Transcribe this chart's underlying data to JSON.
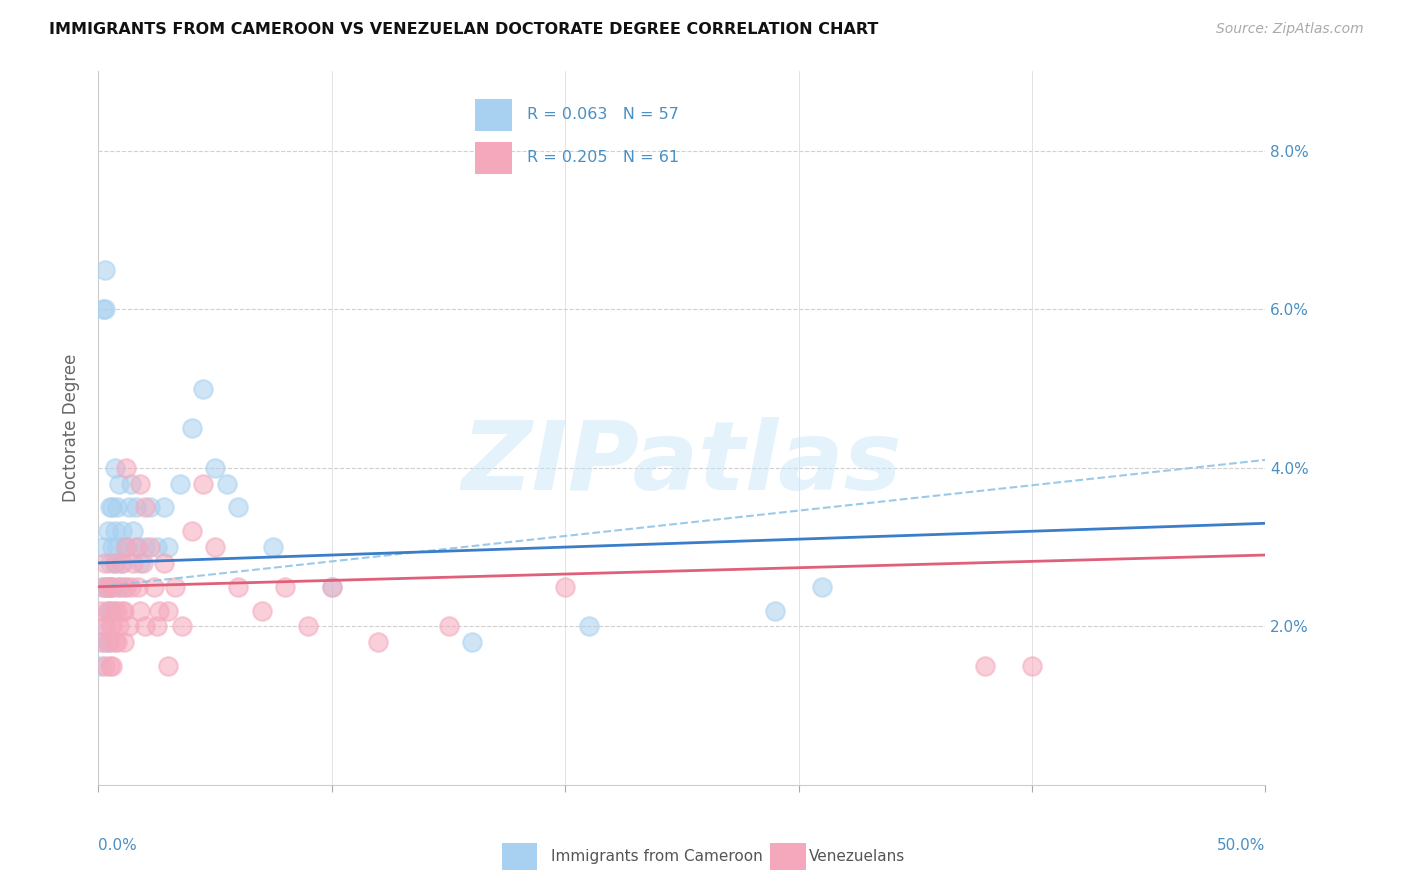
{
  "title": "IMMIGRANTS FROM CAMEROON VS VENEZUELAN DOCTORATE DEGREE CORRELATION CHART",
  "source": "Source: ZipAtlas.com",
  "ylabel": "Doctorate Degree",
  "color_cameroon": "#A8D0F0",
  "color_venezuela": "#F5A8BC",
  "color_text_blue": "#4A90C4",
  "color_trend_cam": "#3A7DC9",
  "color_trend_ven": "#E0607A",
  "color_dashed_cam": "#90C4E8",
  "legend_label1": "Immigrants from Cameroon",
  "legend_label2": "Venezuelans",
  "legend_R1": "R = 0.063",
  "legend_N1": "N = 57",
  "legend_R2": "R = 0.205",
  "legend_N2": "N = 61",
  "watermark": "ZIPatlas",
  "xlim": [
    0.0,
    0.5
  ],
  "ylim": [
    0.0,
    0.09
  ],
  "cam_x": [
    0.001,
    0.001,
    0.002,
    0.002,
    0.002,
    0.003,
    0.003,
    0.003,
    0.003,
    0.004,
    0.004,
    0.004,
    0.004,
    0.005,
    0.005,
    0.005,
    0.005,
    0.005,
    0.006,
    0.006,
    0.006,
    0.006,
    0.007,
    0.007,
    0.007,
    0.008,
    0.008,
    0.009,
    0.009,
    0.01,
    0.01,
    0.011,
    0.011,
    0.012,
    0.013,
    0.014,
    0.015,
    0.016,
    0.017,
    0.018,
    0.02,
    0.022,
    0.025,
    0.028,
    0.03,
    0.035,
    0.04,
    0.045,
    0.05,
    0.055,
    0.06,
    0.075,
    0.1,
    0.16,
    0.21,
    0.29,
    0.31
  ],
  "cam_y": [
    0.015,
    0.018,
    0.025,
    0.06,
    0.03,
    0.02,
    0.025,
    0.06,
    0.065,
    0.022,
    0.018,
    0.025,
    0.032,
    0.025,
    0.018,
    0.022,
    0.028,
    0.035,
    0.025,
    0.022,
    0.03,
    0.035,
    0.028,
    0.032,
    0.04,
    0.035,
    0.03,
    0.038,
    0.025,
    0.032,
    0.028,
    0.03,
    0.025,
    0.03,
    0.035,
    0.038,
    0.032,
    0.035,
    0.03,
    0.028,
    0.03,
    0.035,
    0.03,
    0.035,
    0.03,
    0.038,
    0.045,
    0.05,
    0.04,
    0.038,
    0.035,
    0.03,
    0.025,
    0.018,
    0.02,
    0.022,
    0.025
  ],
  "ven_x": [
    0.001,
    0.002,
    0.002,
    0.003,
    0.003,
    0.003,
    0.004,
    0.004,
    0.004,
    0.005,
    0.005,
    0.005,
    0.006,
    0.006,
    0.006,
    0.007,
    0.007,
    0.007,
    0.008,
    0.008,
    0.009,
    0.009,
    0.01,
    0.01,
    0.011,
    0.011,
    0.012,
    0.012,
    0.013,
    0.014,
    0.015,
    0.016,
    0.017,
    0.018,
    0.019,
    0.02,
    0.022,
    0.024,
    0.026,
    0.028,
    0.03,
    0.033,
    0.036,
    0.04,
    0.045,
    0.05,
    0.06,
    0.07,
    0.08,
    0.09,
    0.1,
    0.12,
    0.15,
    0.2,
    0.38,
    0.4,
    0.012,
    0.018,
    0.02,
    0.025,
    0.03
  ],
  "ven_y": [
    0.022,
    0.018,
    0.025,
    0.015,
    0.02,
    0.028,
    0.018,
    0.022,
    0.025,
    0.015,
    0.02,
    0.025,
    0.015,
    0.02,
    0.025,
    0.018,
    0.022,
    0.028,
    0.018,
    0.022,
    0.02,
    0.025,
    0.022,
    0.028,
    0.018,
    0.022,
    0.025,
    0.03,
    0.02,
    0.025,
    0.028,
    0.03,
    0.025,
    0.022,
    0.028,
    0.02,
    0.03,
    0.025,
    0.022,
    0.028,
    0.022,
    0.025,
    0.02,
    0.032,
    0.038,
    0.03,
    0.025,
    0.022,
    0.025,
    0.02,
    0.025,
    0.018,
    0.02,
    0.025,
    0.015,
    0.015,
    0.04,
    0.038,
    0.035,
    0.02,
    0.015
  ]
}
